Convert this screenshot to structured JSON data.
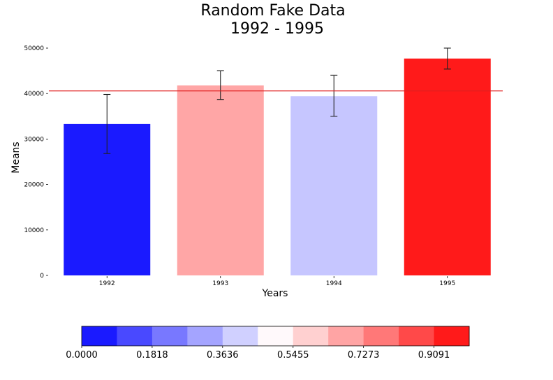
{
  "chart_data": {
    "type": "bar",
    "title": "Random Fake Data",
    "subtitle": "1992 - 1995",
    "xlabel": "Years",
    "ylabel": "Means",
    "categories": [
      "1992",
      "1993",
      "1994",
      "1995"
    ],
    "values": [
      33300,
      41800,
      39400,
      47700
    ],
    "error_low": [
      26800,
      38700,
      35000,
      45400
    ],
    "error_high": [
      39800,
      45000,
      44000,
      50000
    ],
    "bar_colors": [
      "#1a1aff",
      "#ffa6a6",
      "#c6c6ff",
      "#ff1a1a"
    ],
    "reference_line": {
      "value": 40600,
      "color": "#e02020"
    },
    "ylim": [
      0,
      50000
    ],
    "yticks": [
      0,
      10000,
      20000,
      30000,
      40000,
      50000
    ],
    "ytick_labels": [
      "0",
      "10000",
      "20000",
      "30000",
      "40000",
      "50000"
    ],
    "grid": false,
    "colorbar": {
      "orientation": "horizontal",
      "range": [
        0,
        1
      ],
      "colors": [
        "#1a1aff",
        "#4949ff",
        "#7878ff",
        "#a4a4ff",
        "#d0d0ff",
        "#fff9fb",
        "#ffd0d0",
        "#ffa4a4",
        "#ff7878",
        "#ff4949",
        "#ff1a1a"
      ],
      "tick_labels": [
        "0.0000",
        "0.1818",
        "0.3636",
        "0.5455",
        "0.7273",
        "0.9091"
      ]
    }
  }
}
